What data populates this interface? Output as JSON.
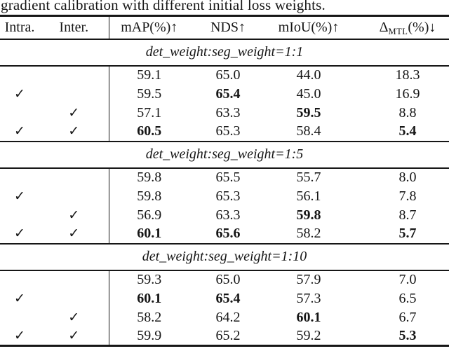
{
  "caption": "gradient calibration with different initial loss weights.",
  "table": {
    "header": {
      "intra": "Intra.",
      "inter": "Inter.",
      "map": "mAP(%)↑",
      "nds": "NDS↑",
      "miou": "mIoU(%)↑",
      "delta_symbol": "Δ",
      "delta_subscript": "MTL",
      "delta_rest": "(%)↓"
    },
    "sections": [
      {
        "title": "det_weight:seg_weight=1:1",
        "rows": [
          {
            "intra": "",
            "inter": "",
            "map": "59.1",
            "nds": "65.0",
            "miou": "44.0",
            "delta": "18.3"
          },
          {
            "intra": "✓",
            "inter": "",
            "map": "59.5",
            "nds": "65.4",
            "miou": "45.0",
            "delta": "16.9"
          },
          {
            "intra": "",
            "inter": "✓",
            "map": "57.1",
            "nds": "63.3",
            "miou": "59.5",
            "delta": "8.8"
          },
          {
            "intra": "✓",
            "inter": "✓",
            "map": "60.5",
            "nds": "65.3",
            "miou": "58.4",
            "delta": "5.4"
          }
        ]
      },
      {
        "title": "det_weight:seg_weight=1:5",
        "rows": [
          {
            "intra": "",
            "inter": "",
            "map": "59.8",
            "nds": "65.5",
            "miou": "55.7",
            "delta": "8.0"
          },
          {
            "intra": "✓",
            "inter": "",
            "map": "59.8",
            "nds": "65.3",
            "miou": "56.1",
            "delta": "7.8"
          },
          {
            "intra": "",
            "inter": "✓",
            "map": "56.9",
            "nds": "63.3",
            "miou": "59.8",
            "delta": "8.7"
          },
          {
            "intra": "✓",
            "inter": "✓",
            "map": "60.1",
            "nds": "65.6",
            "miou": "58.2",
            "delta": "5.7"
          }
        ]
      },
      {
        "title": "det_weight:seg_weight=1:10",
        "rows": [
          {
            "intra": "",
            "inter": "",
            "map": "59.3",
            "nds": "65.0",
            "miou": "57.9",
            "delta": "7.0"
          },
          {
            "intra": "✓",
            "inter": "",
            "map": "60.1",
            "nds": "65.4",
            "miou": "57.3",
            "delta": "6.5"
          },
          {
            "intra": "",
            "inter": "✓",
            "map": "58.2",
            "nds": "64.2",
            "miou": "60.1",
            "delta": "6.7"
          },
          {
            "intra": "✓",
            "inter": "✓",
            "map": "59.9",
            "nds": "65.2",
            "miou": "59.2",
            "delta": "5.3"
          }
        ]
      }
    ]
  }
}
